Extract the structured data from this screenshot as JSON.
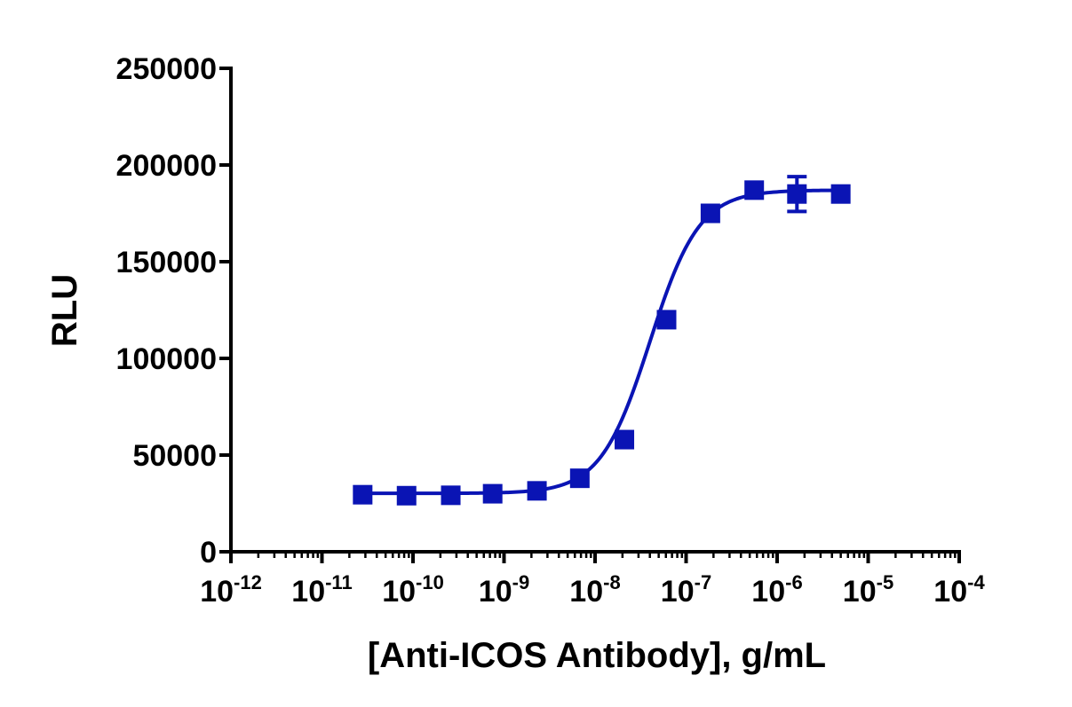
{
  "chart_data": {
    "type": "scatter",
    "xlabel": "[Anti-ICOS Antibody], g/mL",
    "ylabel": "RLU",
    "x_scale": "log",
    "xlim": [
      1e-12,
      0.0001
    ],
    "ylim": [
      0,
      250000
    ],
    "y_ticks": [
      0,
      50000,
      100000,
      150000,
      200000,
      250000
    ],
    "y_tick_labels": [
      "0",
      "50000",
      "100000",
      "150000",
      "200000",
      "250000"
    ],
    "x_ticks": [
      {
        "base": "10",
        "exp": "-12"
      },
      {
        "base": "10",
        "exp": "-11"
      },
      {
        "base": "10",
        "exp": "-10"
      },
      {
        "base": "10",
        "exp": "-9"
      },
      {
        "base": "10",
        "exp": "-8"
      },
      {
        "base": "10",
        "exp": "-7"
      },
      {
        "base": "10",
        "exp": "-6"
      },
      {
        "base": "10",
        "exp": "-5"
      },
      {
        "base": "10",
        "exp": "-4"
      }
    ],
    "grid": false,
    "legend": "none",
    "series": [
      {
        "marker": "square",
        "color": "#0A14B4",
        "points": [
          {
            "x": 2.8e-11,
            "y": 29500,
            "err": 0
          },
          {
            "x": 8.5e-11,
            "y": 29000,
            "err": 0
          },
          {
            "x": 2.6e-10,
            "y": 29200,
            "err": 0
          },
          {
            "x": 7.5e-10,
            "y": 30000,
            "err": 0
          },
          {
            "x": 2.3e-09,
            "y": 31500,
            "err": 0
          },
          {
            "x": 6.8e-09,
            "y": 38000,
            "err": 0
          },
          {
            "x": 2.1e-08,
            "y": 58000,
            "err": 0
          },
          {
            "x": 6.1e-08,
            "y": 120000,
            "err": 0
          },
          {
            "x": 1.85e-07,
            "y": 175000,
            "err": 0
          },
          {
            "x": 5.6e-07,
            "y": 187000,
            "err": 0
          },
          {
            "x": 1.65e-06,
            "y": 185000,
            "err": 9000
          },
          {
            "x": 5e-06,
            "y": 185000,
            "err": 0
          }
        ]
      }
    ],
    "fit": {
      "model": "4PL",
      "bottom": 30200,
      "top": 187000,
      "ec50": 4e-08,
      "hill": 1.6,
      "x_range": [
        2.8e-11,
        5e-06
      ],
      "color": "#0A14B4"
    }
  }
}
